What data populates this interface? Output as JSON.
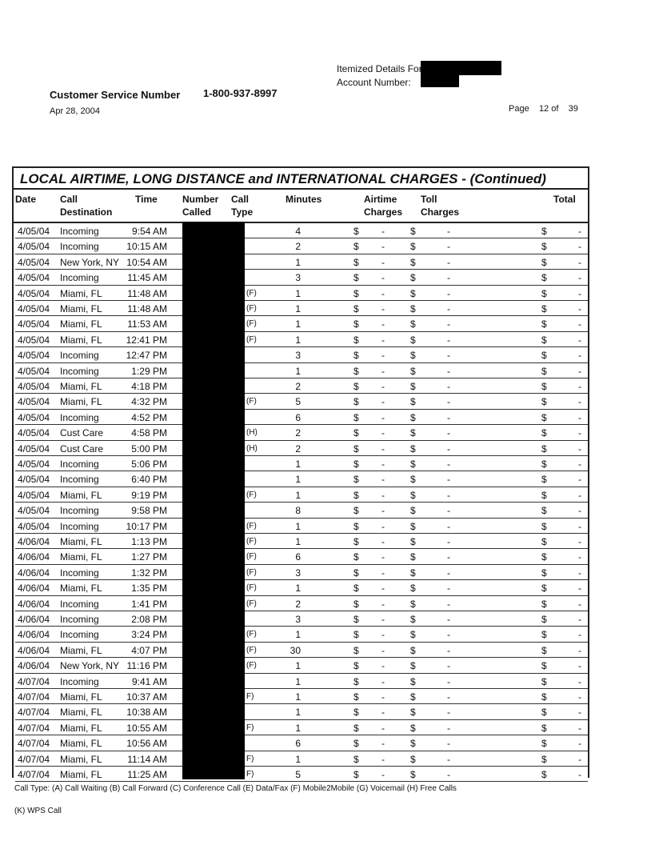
{
  "header": {
    "itemized_label": "Itemized Details For:",
    "account_label": "Account Number:",
    "customer_service_label": "Customer Service Number",
    "customer_service_number": "1-800-937-8997",
    "date": "Apr 28, 2004",
    "page_label": "Page",
    "page_number": "12",
    "page_of": "of",
    "page_total": "39"
  },
  "table": {
    "title": "LOCAL AIRTIME, LONG DISTANCE and INTERNATIONAL CHARGES  - (Continued)",
    "columns": [
      "Date",
      "Call Destination",
      "Time",
      "Number Called",
      "Call Type",
      "Minutes",
      "Airtime Charges",
      "Toll Charges",
      "Total"
    ],
    "currency": "$",
    "rows": [
      {
        "date": "4/05/04",
        "dest": "Incoming",
        "time": "9:54 AM",
        "type": "",
        "min": "4",
        "airtime": "-",
        "toll": "-",
        "total": "-"
      },
      {
        "date": "4/05/04",
        "dest": "Incoming",
        "time": "10:15 AM",
        "type": "",
        "min": "2",
        "airtime": "-",
        "toll": "-",
        "total": "-"
      },
      {
        "date": "4/05/04",
        "dest": "New York, NY",
        "time": "10:54 AM",
        "type": "",
        "min": "1",
        "airtime": "-",
        "toll": "-",
        "total": "-"
      },
      {
        "date": "4/05/04",
        "dest": "Incoming",
        "time": "11:45 AM",
        "type": "",
        "min": "3",
        "airtime": "-",
        "toll": "-",
        "total": "-"
      },
      {
        "date": "4/05/04",
        "dest": "Miami, FL",
        "time": "11:48 AM",
        "type": "(F)",
        "min": "1",
        "airtime": "-",
        "toll": "-",
        "total": "-"
      },
      {
        "date": "4/05/04",
        "dest": "Miami, FL",
        "time": "11:48 AM",
        "type": "(F)",
        "min": "1",
        "airtime": "-",
        "toll": "-",
        "total": "-"
      },
      {
        "date": "4/05/04",
        "dest": "Miami, FL",
        "time": "11:53 AM",
        "type": "(F)",
        "min": "1",
        "airtime": "-",
        "toll": "-",
        "total": "-"
      },
      {
        "date": "4/05/04",
        "dest": "Miami, FL",
        "time": "12:41 PM",
        "type": "(F)",
        "min": "1",
        "airtime": "-",
        "toll": "-",
        "total": "-"
      },
      {
        "date": "4/05/04",
        "dest": "Incoming",
        "time": "12:47 PM",
        "type": "",
        "min": "3",
        "airtime": "-",
        "toll": "-",
        "total": "-"
      },
      {
        "date": "4/05/04",
        "dest": "Incoming",
        "time": "1:29 PM",
        "type": "",
        "min": "1",
        "airtime": "-",
        "toll": "-",
        "total": "-"
      },
      {
        "date": "4/05/04",
        "dest": "Miami, FL",
        "time": "4:18 PM",
        "type": "",
        "min": "2",
        "airtime": "-",
        "toll": "-",
        "total": "-"
      },
      {
        "date": "4/05/04",
        "dest": "Miami, FL",
        "time": "4:32 PM",
        "type": "(F)",
        "min": "5",
        "airtime": "-",
        "toll": "-",
        "total": "-"
      },
      {
        "date": "4/05/04",
        "dest": "Incoming",
        "time": "4:52 PM",
        "type": "",
        "min": "6",
        "airtime": "-",
        "toll": "-",
        "total": "-"
      },
      {
        "date": "4/05/04",
        "dest": "Cust Care",
        "time": "4:58 PM",
        "type": "(H)",
        "min": "2",
        "airtime": "-",
        "toll": "-",
        "total": "-"
      },
      {
        "date": "4/05/04",
        "dest": "Cust Care",
        "time": "5:00 PM",
        "type": "(H)",
        "min": "2",
        "airtime": "-",
        "toll": "-",
        "total": "-"
      },
      {
        "date": "4/05/04",
        "dest": "Incoming",
        "time": "5:06 PM",
        "type": "",
        "min": "1",
        "airtime": "-",
        "toll": "-",
        "total": "-"
      },
      {
        "date": "4/05/04",
        "dest": "Incoming",
        "time": "6:40 PM",
        "type": "",
        "min": "1",
        "airtime": "-",
        "toll": "-",
        "total": "-"
      },
      {
        "date": "4/05/04",
        "dest": "Miami, FL",
        "time": "9:19 PM",
        "type": "(F)",
        "min": "1",
        "airtime": "-",
        "toll": "-",
        "total": "-"
      },
      {
        "date": "4/05/04",
        "dest": "Incoming",
        "time": "9:58 PM",
        "type": "",
        "min": "8",
        "airtime": "-",
        "toll": "-",
        "total": "-"
      },
      {
        "date": "4/05/04",
        "dest": "Incoming",
        "time": "10:17 PM",
        "type": "(F)",
        "min": "1",
        "airtime": "-",
        "toll": "-",
        "total": "-"
      },
      {
        "date": "4/06/04",
        "dest": "Miami, FL",
        "time": "1:13 PM",
        "type": "(F)",
        "min": "1",
        "airtime": "-",
        "toll": "-",
        "total": "-"
      },
      {
        "date": "4/06/04",
        "dest": "Miami, FL",
        "time": "1:27 PM",
        "type": "(F)",
        "min": "6",
        "airtime": "-",
        "toll": "-",
        "total": "-"
      },
      {
        "date": "4/06/04",
        "dest": "Incoming",
        "time": "1:32 PM",
        "type": "(F)",
        "min": "3",
        "airtime": "-",
        "toll": "-",
        "total": "-"
      },
      {
        "date": "4/06/04",
        "dest": "Miami, FL",
        "time": "1:35 PM",
        "type": "(F)",
        "min": "1",
        "airtime": "-",
        "toll": "-",
        "total": "-"
      },
      {
        "date": "4/06/04",
        "dest": "Incoming",
        "time": "1:41 PM",
        "type": "(F)",
        "min": "2",
        "airtime": "-",
        "toll": "-",
        "total": "-"
      },
      {
        "date": "4/06/04",
        "dest": "Incoming",
        "time": "2:08 PM",
        "type": "",
        "min": "3",
        "airtime": "-",
        "toll": "-",
        "total": "-"
      },
      {
        "date": "4/06/04",
        "dest": "Incoming",
        "time": "3:24 PM",
        "type": "(F)",
        "min": "1",
        "airtime": "-",
        "toll": "-",
        "total": "-"
      },
      {
        "date": "4/06/04",
        "dest": "Miami, FL",
        "time": "4:07 PM",
        "type": "(F)",
        "min": "30",
        "airtime": "-",
        "toll": "-",
        "total": "-"
      },
      {
        "date": "4/06/04",
        "dest": "New York, NY",
        "time": "11:16 PM",
        "type": "(F)",
        "min": "1",
        "airtime": "-",
        "toll": "-",
        "total": "-"
      },
      {
        "date": "4/07/04",
        "dest": "Incoming",
        "time": "9:41 AM",
        "type": "",
        "min": "1",
        "airtime": "-",
        "toll": "-",
        "total": "-"
      },
      {
        "date": "4/07/04",
        "dest": "Miami, FL",
        "time": "10:37 AM",
        "type": "F)",
        "min": "1",
        "airtime": "-",
        "toll": "-",
        "total": "-"
      },
      {
        "date": "4/07/04",
        "dest": "Miami, FL",
        "time": "10:38 AM",
        "type": "",
        "min": "1",
        "airtime": "-",
        "toll": "-",
        "total": "-"
      },
      {
        "date": "4/07/04",
        "dest": "Miami, FL",
        "time": "10:55 AM",
        "type": "F)",
        "min": "1",
        "airtime": "-",
        "toll": "-",
        "total": "-"
      },
      {
        "date": "4/07/04",
        "dest": "Miami, FL",
        "time": "10:56 AM",
        "type": "",
        "min": "6",
        "airtime": "-",
        "toll": "-",
        "total": "-"
      },
      {
        "date": "4/07/04",
        "dest": "Miami, FL",
        "time": "11:14 AM",
        "type": "F)",
        "min": "1",
        "airtime": "-",
        "toll": "-",
        "total": "-"
      },
      {
        "date": "4/07/04",
        "dest": "Miami, FL",
        "time": "11:25 AM",
        "type": "F)",
        "min": "5",
        "airtime": "-",
        "toll": "-",
        "total": "-"
      }
    ]
  },
  "footer": {
    "legend": "Call Type: (A) Call Waiting (B) Call Forward (C) Conference Call (E) Data/Fax (F) Mobile2Mobile (G) Voicemail (H) Free Calls",
    "legend2": "(K) WPS Call"
  }
}
